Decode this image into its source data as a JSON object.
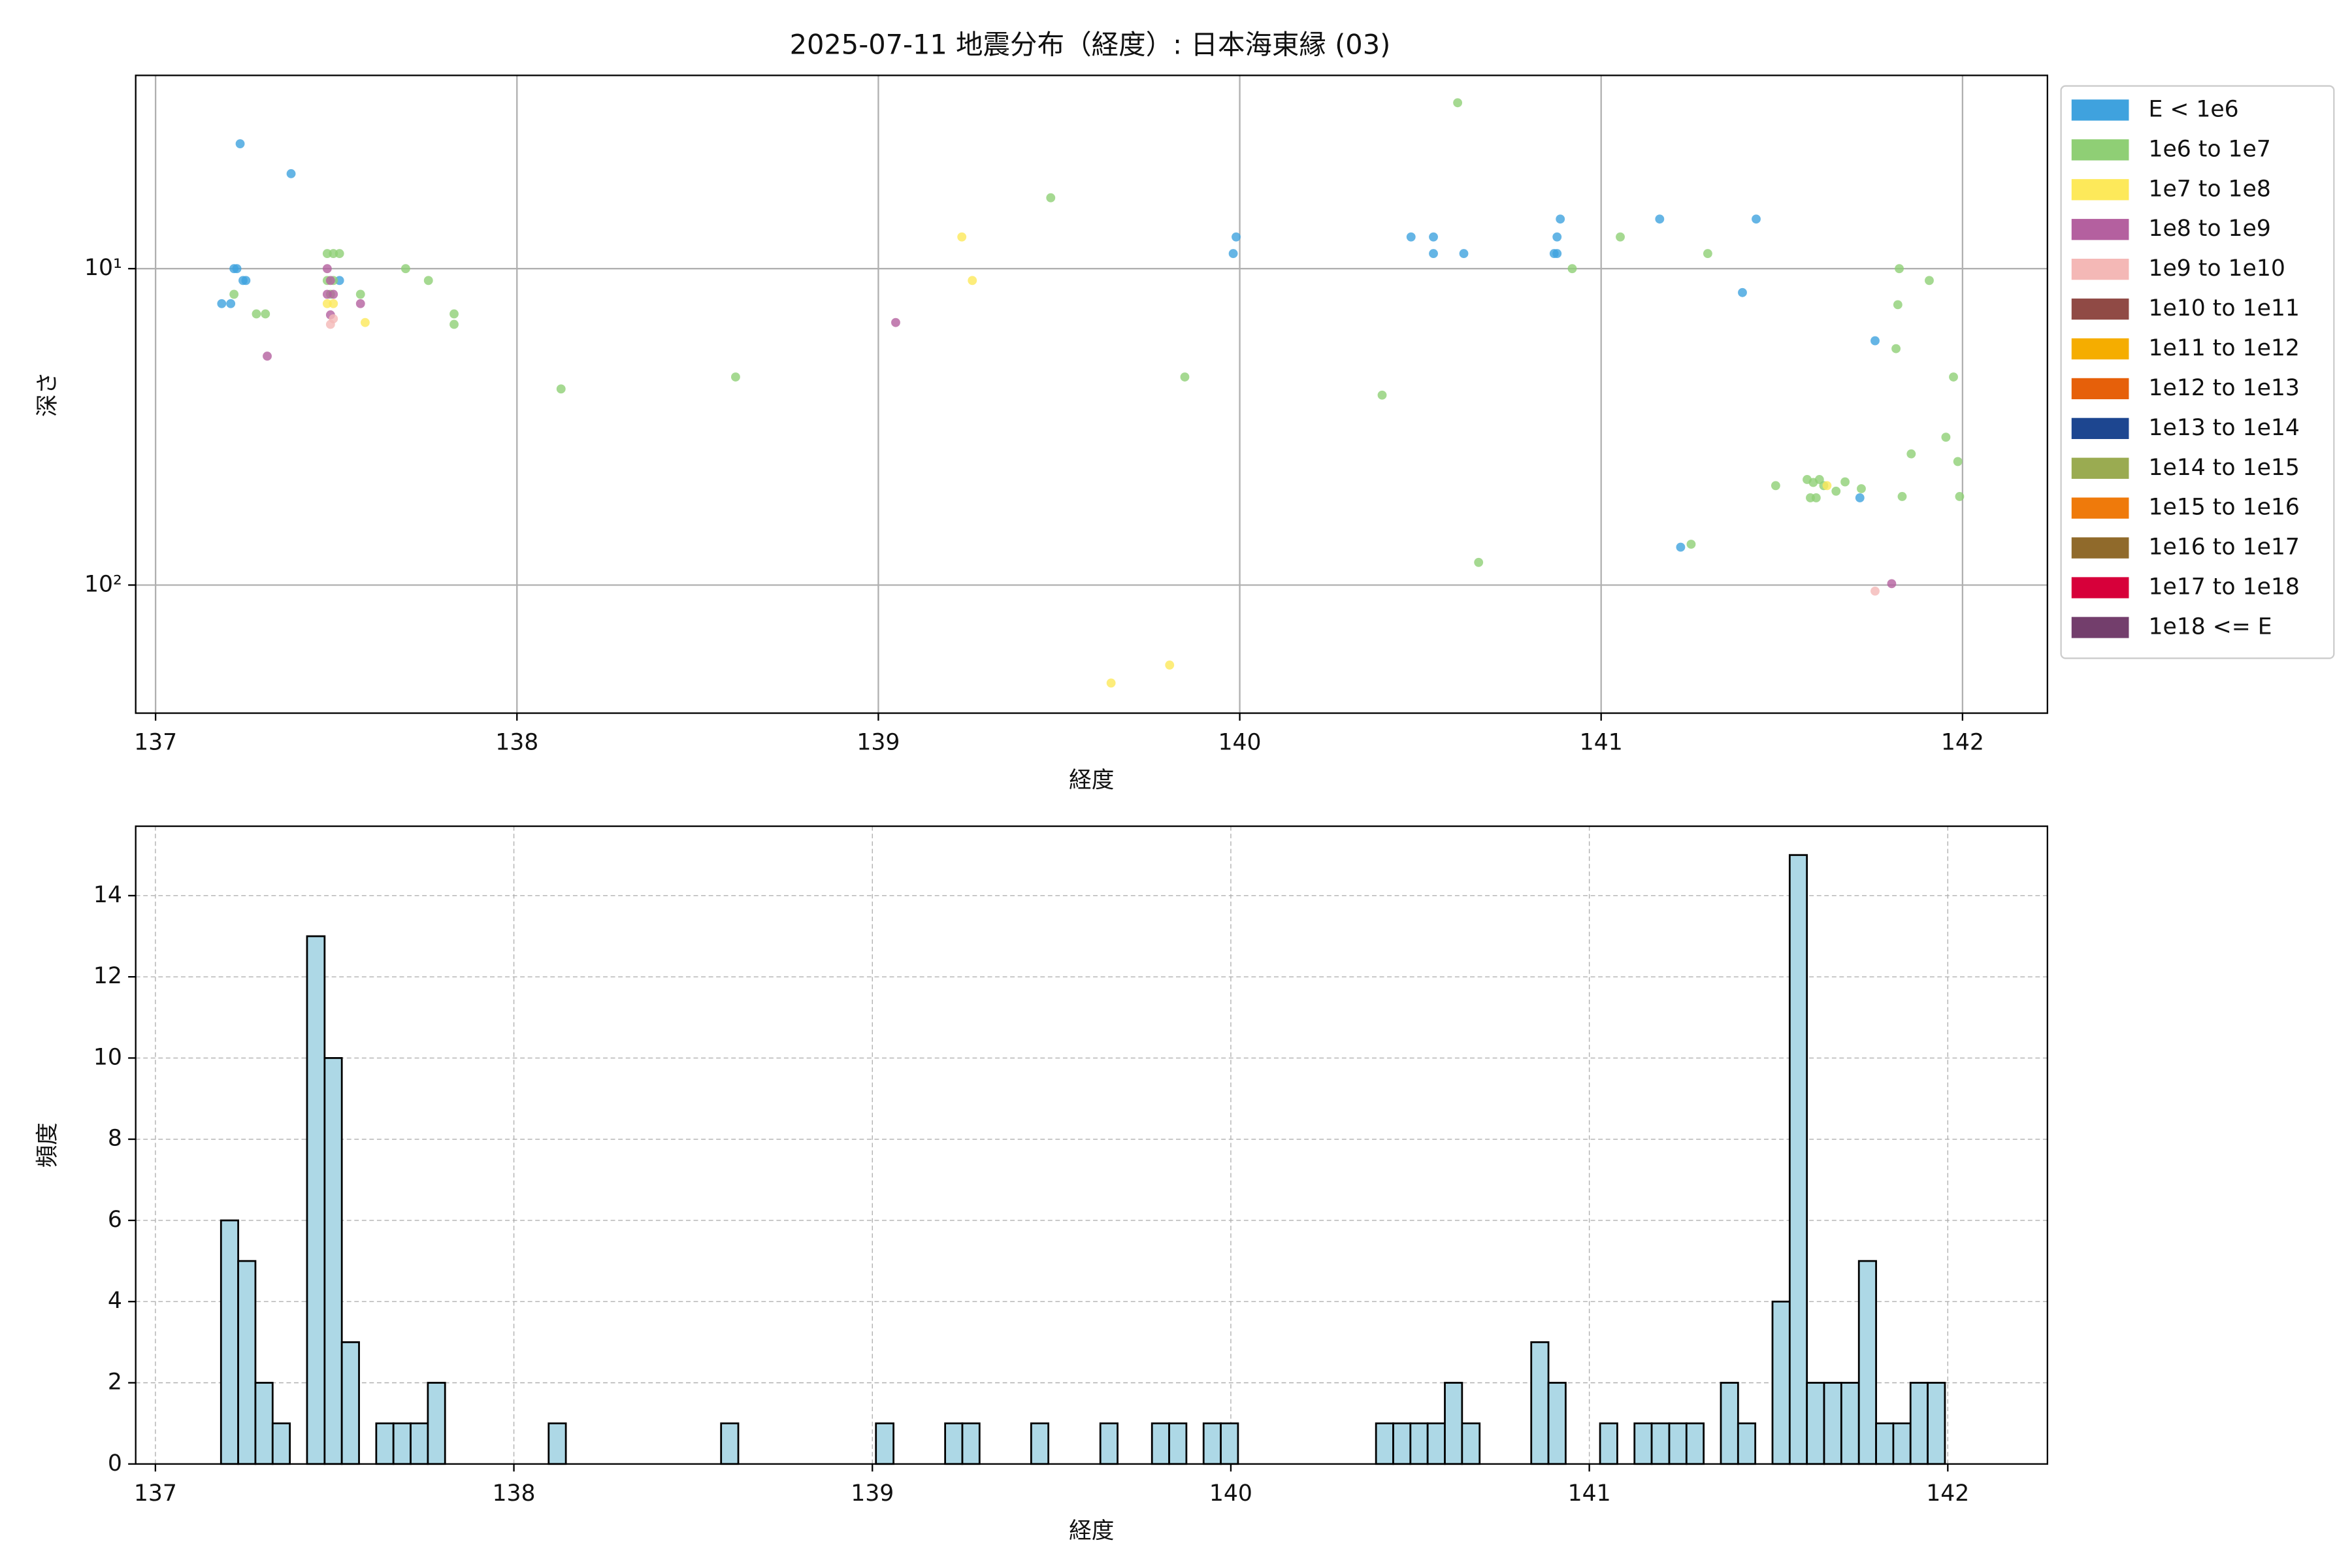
{
  "chart_data": [
    {
      "type": "scatter",
      "title": "2025-07-11 地震分布（経度）: 日本海東縁 (03)",
      "x_label": "経度",
      "y_label": "深さ",
      "xlim": [
        136.945,
        142.235
      ],
      "ylim": [
        2.45,
        254
      ],
      "y_scale": "log",
      "y_inverted": true,
      "xticks": [
        137,
        138,
        139,
        140,
        141,
        142
      ],
      "yticks": [
        {
          "value": 10,
          "label": "10¹"
        },
        {
          "value": 100,
          "label": "10²"
        }
      ],
      "grid": true,
      "legend": "outside right",
      "series": [
        {
          "name": "E < 1e6",
          "color": "#3fa2de",
          "x": [
            137.234,
            137.375,
            137.217,
            137.225,
            137.242,
            137.25,
            137.183,
            137.208,
            137.509,
            139.982,
            139.99,
            140.474,
            140.536,
            140.536,
            140.62,
            140.887,
            140.878,
            140.87,
            140.878,
            141.162,
            141.429,
            141.391,
            141.758,
            141.716,
            141.22
          ],
          "values": [
            4.03,
            5.01,
            10,
            10,
            10.9,
            10.9,
            12.9,
            12.9,
            10.9,
            8.96,
            7.94,
            7.94,
            7.94,
            8.96,
            8.96,
            6.97,
            7.94,
            8.96,
            8.96,
            6.97,
            6.97,
            11.9,
            16.9,
            53,
            75.9
          ]
        },
        {
          "name": "1e6 to 1e7",
          "color": "#8fcf75",
          "x": [
            137.217,
            137.279,
            137.304,
            137.475,
            137.492,
            137.509,
            137.475,
            137.492,
            137.484,
            137.567,
            137.692,
            137.755,
            137.826,
            137.826,
            138.122,
            138.605,
            139.477,
            139.848,
            140.394,
            140.603,
            140.661,
            140.92,
            141.053,
            141.295,
            141.249,
            141.483,
            141.57,
            141.579,
            141.595,
            141.587,
            141.604,
            141.616,
            141.65,
            141.675,
            141.72,
            141.825,
            141.821,
            141.816,
            141.908,
            141.975,
            141.954,
            141.858,
            141.987,
            141.833,
            141.992
          ],
          "values": [
            12.05,
            13.9,
            13.9,
            8.96,
            8.96,
            8.96,
            10.9,
            10.9,
            12.05,
            12.05,
            10,
            10.9,
            13.9,
            15,
            24,
            22,
            5.97,
            22,
            25.1,
            2.99,
            84.8,
            10,
            7.94,
            8.96,
            74.3,
            48.5,
            46.4,
            53,
            53,
            47.4,
            46.4,
            48.5,
            50.5,
            47.2,
            49.6,
            10,
            13,
            17.9,
            10.9,
            22,
            34.1,
            38.5,
            40.7,
            52.5,
            52.5
          ]
        },
        {
          "name": "1e7 to 1e8",
          "color": "#fde95a",
          "x": [
            137.475,
            137.492,
            137.58,
            139.231,
            139.26,
            139.644,
            139.806,
            141.625
          ],
          "values": [
            12.9,
            12.9,
            14.8,
            7.94,
            10.9,
            204,
            179,
            48.5
          ]
        },
        {
          "name": "1e8 to 1e9",
          "color": "#b4609f",
          "x": [
            137.475,
            137.484,
            137.475,
            137.492,
            137.484,
            137.567,
            137.309,
            139.048,
            141.804
          ],
          "values": [
            10,
            10.9,
            12.05,
            12.05,
            14,
            12.9,
            18.9,
            14.8,
            99
          ]
        },
        {
          "name": "1e9 to 1e10",
          "color": "#f4b8b6",
          "x": [
            137.484,
            137.492,
            141.758
          ],
          "values": [
            15,
            14.4,
            104.5
          ]
        },
        {
          "name": "1e10 to 1e11",
          "color": "#904a45",
          "x": [],
          "values": []
        },
        {
          "name": "1e11 to 1e12",
          "color": "#f5ad00",
          "x": [],
          "values": []
        },
        {
          "name": "1e12 to 1e13",
          "color": "#e6600a",
          "x": [],
          "values": []
        },
        {
          "name": "1e13 to 1e14",
          "color": "#1d4690",
          "x": [],
          "values": []
        },
        {
          "name": "1e14 to 1e15",
          "color": "#9aab51",
          "x": [],
          "values": []
        },
        {
          "name": "1e15 to 1e16",
          "color": "#ef7a0b",
          "x": [],
          "values": []
        },
        {
          "name": "1e16 to 1e17",
          "color": "#906a2b",
          "x": [],
          "values": []
        },
        {
          "name": "1e17 to 1e18",
          "color": "#d7003a",
          "x": [],
          "values": []
        },
        {
          "name": "1e18 <= E",
          "color": "#733e6c",
          "x": [],
          "values": []
        }
      ]
    },
    {
      "type": "histogram",
      "x_label": "経度",
      "y_label": "頻度",
      "xlim": [
        136.945,
        142.278
      ],
      "ylim": [
        0,
        15.71
      ],
      "xticks": [
        137,
        138,
        139,
        140,
        141,
        142
      ],
      "yticks": [
        0,
        2,
        4,
        6,
        8,
        10,
        12,
        14
      ],
      "grid": "dashed",
      "color": "#add8e6",
      "edgecolor": "#000000",
      "bins": [
        137.183,
        137.231,
        137.279,
        137.327,
        137.375,
        137.423,
        137.472,
        137.52,
        137.568,
        137.616,
        137.664,
        137.712,
        137.76,
        137.808,
        137.856,
        137.904,
        137.952,
        138.001,
        138.049,
        138.097,
        138.145,
        138.193,
        138.241,
        138.289,
        138.337,
        138.385,
        138.433,
        138.481,
        138.53,
        138.578,
        138.626,
        138.674,
        138.722,
        138.77,
        138.818,
        138.866,
        138.914,
        138.962,
        139.01,
        139.059,
        139.107,
        139.155,
        139.203,
        139.251,
        139.299,
        139.347,
        139.395,
        139.443,
        139.491,
        139.539,
        139.588,
        139.636,
        139.684,
        139.732,
        139.78,
        139.828,
        139.876,
        139.924,
        139.972,
        140.02,
        140.068,
        140.116,
        140.165,
        140.213,
        140.261,
        140.309,
        140.357,
        140.405,
        140.453,
        140.501,
        140.549,
        140.597,
        140.645,
        140.694,
        140.742,
        140.79,
        140.838,
        140.886,
        140.934,
        140.982,
        141.03,
        141.078,
        141.126,
        141.174,
        141.223,
        141.271,
        141.319,
        141.367,
        141.415,
        141.463,
        141.511,
        141.559,
        141.607,
        141.655,
        141.703,
        141.752,
        141.8,
        141.848,
        141.896,
        141.944,
        141.992
      ],
      "counts": [
        6,
        5,
        2,
        1,
        0,
        13,
        10,
        3,
        0,
        1,
        1,
        1,
        2,
        0,
        0,
        0,
        0,
        0,
        0,
        1,
        0,
        0,
        0,
        0,
        0,
        0,
        0,
        0,
        0,
        1,
        0,
        0,
        0,
        0,
        0,
        0,
        0,
        0,
        1,
        0,
        0,
        0,
        1,
        1,
        0,
        0,
        0,
        1,
        0,
        0,
        0,
        1,
        0,
        0,
        1,
        1,
        0,
        1,
        1,
        0,
        0,
        0,
        0,
        0,
        0,
        0,
        0,
        1,
        1,
        1,
        1,
        2,
        1,
        0,
        0,
        0,
        3,
        2,
        0,
        0,
        1,
        0,
        1,
        1,
        1,
        1,
        0,
        2,
        1,
        0,
        4,
        15,
        2,
        2,
        2,
        5,
        1,
        1,
        2,
        2
      ]
    }
  ]
}
